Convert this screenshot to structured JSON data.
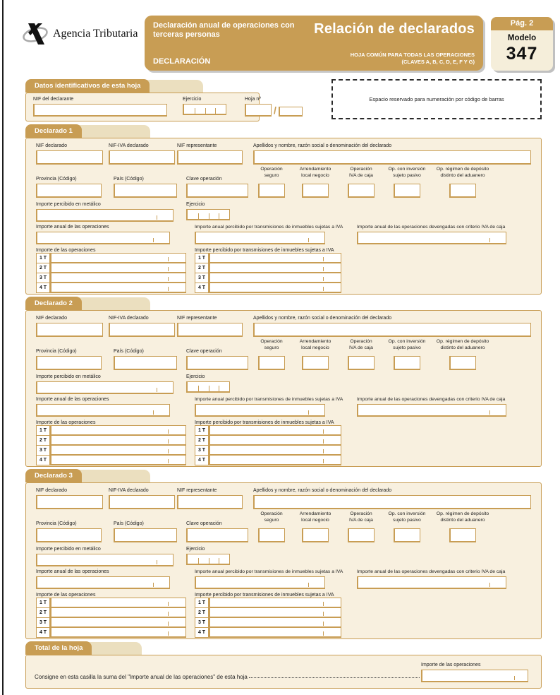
{
  "header": {
    "logo_text": "Agencia Tributaria",
    "band": {
      "title": "Declaración anual de operaciones con terceras personas",
      "subtitle": "DECLARACIÓN",
      "right_title": "Relación de declarados",
      "right_line1": "HOJA COMÚN PARA TODAS LAS OPERACIONES",
      "right_line2": "(CLAVES A, B, C, D, E, F Y G)"
    },
    "page_box": {
      "page": "Pág. 2",
      "model_label": "Modelo",
      "model_number": "347"
    }
  },
  "colors": {
    "accent": "#C89D54",
    "section_background": "#F8F0DF",
    "input_border": "#C89D54"
  },
  "datos_hoja": {
    "tab": "Datos identificativos de esta hoja",
    "nif_declarante": "NIF del declarante",
    "ejercicio": "Ejercicio",
    "hoja_no": "Hoja nº",
    "hoja_separator": "/"
  },
  "barcode": {
    "text": "Espacio reservado para numeración por código de barras"
  },
  "declarado": {
    "labels": {
      "nif": "NIF declarado",
      "nif_iva": "NIF-IVA declarado",
      "nif_representante": "NIF representante",
      "apellidos": "Apellidos y nombre, razón social o denominación del declarado",
      "provincia": "Provincia (Código)",
      "pais": "País (Código)",
      "clave": "Clave operación",
      "op_seguro": [
        "Operación",
        "seguro"
      ],
      "arrendamiento": [
        "Arrendamiento",
        "local negocio"
      ],
      "op_iva_caja": [
        "Operación",
        "IVA de caja"
      ],
      "op_inversion": [
        "Op. con inversión",
        "sujeto pasivo"
      ],
      "op_deposito": [
        "Op. régimen de depósito",
        "distinto del aduanero"
      ],
      "importe_metalico": "Importe percibido en metálico",
      "ejercicio": "Ejercicio",
      "importe_anual": "Importe anual de las operaciones",
      "importe_anual_inmuebles": "Importe anual percibido por transmisiones de inmuebles sujetas a IVA",
      "importe_anual_caja": "Importe anual de las operaciones devengadas con criterio IVA de caja",
      "importe_operaciones": "Importe de las operaciones",
      "importe_inmuebles": "Importe percibido por transmisiones de inmuebles sujetas a IVA"
    },
    "quarters": [
      "1 T",
      "2 T",
      "3 T",
      "4 T"
    ]
  },
  "sections": [
    {
      "tab": "Declarado 1"
    },
    {
      "tab": "Declarado 2"
    },
    {
      "tab": "Declarado 3"
    }
  ],
  "total": {
    "tab": "Total de la hoja",
    "text": "Consigne en esta casilla la suma del \"Importe anual de las operaciones\" de esta hoja",
    "importe_label": "Importe de las operaciones"
  }
}
